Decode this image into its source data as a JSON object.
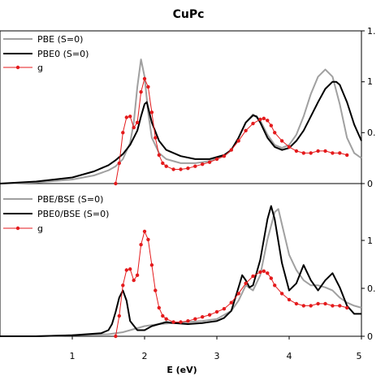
{
  "chart_data": {
    "type": "line",
    "title": "CuPc",
    "xlabel": "E (eV)",
    "xlim": [
      0,
      5
    ],
    "x_ticks": [
      "1",
      "2",
      "3",
      "4",
      "5"
    ],
    "y_ticks_right": [
      "0",
      "0.",
      "1",
      "1."
    ],
    "panels": [
      {
        "ylim": [
          0,
          1.5
        ],
        "legend": "top-left",
        "series": [
          {
            "name": "PBE (S=0)",
            "color": "#a0a0a0",
            "style": "line",
            "x": [
              0.0,
              0.5,
              1.0,
              1.3,
              1.5,
              1.6,
              1.7,
              1.8,
              1.85,
              1.9,
              1.95,
              2.0,
              2.05,
              2.1,
              2.2,
              2.3,
              2.5,
              2.7,
              2.9,
              3.1,
              3.2,
              3.3,
              3.4,
              3.5,
              3.6,
              3.7,
              3.8,
              3.9,
              4.0,
              4.1,
              4.2,
              4.3,
              4.4,
              4.5,
              4.6,
              4.7,
              4.8,
              4.9,
              5.0
            ],
            "y": [
              0.0,
              0.01,
              0.04,
              0.08,
              0.13,
              0.17,
              0.24,
              0.4,
              0.6,
              0.95,
              1.22,
              1.05,
              0.7,
              0.45,
              0.3,
              0.24,
              0.2,
              0.2,
              0.22,
              0.27,
              0.33,
              0.45,
              0.6,
              0.68,
              0.62,
              0.48,
              0.38,
              0.35,
              0.38,
              0.48,
              0.66,
              0.88,
              1.05,
              1.12,
              1.05,
              0.78,
              0.45,
              0.3,
              0.25
            ]
          },
          {
            "name": "PBE0 (S=0)",
            "color": "#000000",
            "style": "line",
            "x": [
              0.0,
              0.5,
              1.0,
              1.3,
              1.5,
              1.6,
              1.7,
              1.8,
              1.9,
              1.95,
              2.0,
              2.03,
              2.1,
              2.2,
              2.3,
              2.5,
              2.7,
              2.9,
              3.1,
              3.2,
              3.3,
              3.4,
              3.5,
              3.55,
              3.6,
              3.7,
              3.8,
              3.9,
              4.0,
              4.1,
              4.2,
              4.3,
              4.4,
              4.5,
              4.6,
              4.65,
              4.7,
              4.8,
              4.9,
              5.0
            ],
            "y": [
              0.0,
              0.02,
              0.06,
              0.12,
              0.18,
              0.23,
              0.29,
              0.38,
              0.52,
              0.66,
              0.78,
              0.8,
              0.6,
              0.42,
              0.33,
              0.27,
              0.24,
              0.24,
              0.28,
              0.33,
              0.45,
              0.6,
              0.67,
              0.66,
              0.6,
              0.45,
              0.36,
              0.33,
              0.35,
              0.42,
              0.52,
              0.66,
              0.8,
              0.93,
              1.0,
              1.0,
              0.97,
              0.8,
              0.58,
              0.42
            ]
          },
          {
            "name": "g",
            "color": "#e41a1c",
            "style": "line-marker",
            "x": [
              1.6,
              1.65,
              1.7,
              1.75,
              1.8,
              1.85,
              1.9,
              1.95,
              2.0,
              2.05,
              2.1,
              2.15,
              2.2,
              2.25,
              2.3,
              2.4,
              2.5,
              2.6,
              2.7,
              2.8,
              2.9,
              3.0,
              3.1,
              3.2,
              3.3,
              3.4,
              3.5,
              3.6,
              3.65,
              3.7,
              3.75,
              3.8,
              3.9,
              4.0,
              4.1,
              4.2,
              4.3,
              4.4,
              4.5,
              4.6,
              4.7,
              4.8
            ],
            "y": [
              0.0,
              0.2,
              0.5,
              0.65,
              0.66,
              0.55,
              0.6,
              0.9,
              1.03,
              0.95,
              0.7,
              0.45,
              0.28,
              0.2,
              0.17,
              0.14,
              0.14,
              0.15,
              0.17,
              0.19,
              0.21,
              0.24,
              0.27,
              0.33,
              0.42,
              0.52,
              0.59,
              0.63,
              0.64,
              0.62,
              0.57,
              0.5,
              0.42,
              0.36,
              0.32,
              0.3,
              0.3,
              0.32,
              0.32,
              0.3,
              0.3,
              0.28
            ]
          }
        ]
      },
      {
        "ylim": [
          0,
          1.5
        ],
        "legend": "top-left",
        "series": [
          {
            "name": "PBE/BSE (S=0)",
            "color": "#a0a0a0",
            "style": "line",
            "x": [
              0.0,
              0.5,
              1.0,
              1.5,
              1.6,
              1.7,
              1.8,
              1.9,
              2.0,
              2.2,
              2.4,
              2.6,
              2.8,
              3.0,
              3.2,
              3.3,
              3.4,
              3.5,
              3.6,
              3.7,
              3.8,
              3.85,
              3.9,
              4.0,
              4.1,
              4.2,
              4.3,
              4.4,
              4.5,
              4.6,
              4.7,
              4.8,
              4.9,
              5.0
            ],
            "y": [
              0.0,
              0.0,
              0.01,
              0.02,
              0.03,
              0.04,
              0.06,
              0.08,
              0.1,
              0.12,
              0.13,
              0.14,
              0.15,
              0.17,
              0.25,
              0.35,
              0.5,
              0.45,
              0.6,
              0.95,
              1.22,
              1.25,
              1.1,
              0.8,
              0.65,
              0.55,
              0.5,
              0.5,
              0.48,
              0.45,
              0.38,
              0.33,
              0.3,
              0.28
            ]
          },
          {
            "name": "PBE0/BSE (S=0)",
            "color": "#000000",
            "style": "line",
            "x": [
              0.0,
              0.5,
              1.0,
              1.4,
              1.5,
              1.55,
              1.6,
              1.65,
              1.7,
              1.75,
              1.8,
              1.9,
              2.0,
              2.1,
              2.2,
              2.3,
              2.4,
              2.6,
              2.8,
              3.0,
              3.1,
              3.2,
              3.3,
              3.35,
              3.4,
              3.45,
              3.5,
              3.6,
              3.7,
              3.75,
              3.8,
              3.9,
              4.0,
              4.1,
              4.2,
              4.3,
              4.4,
              4.5,
              4.6,
              4.7,
              4.8,
              4.9,
              5.0
            ],
            "y": [
              0.0,
              0.0,
              0.01,
              0.03,
              0.06,
              0.12,
              0.24,
              0.38,
              0.45,
              0.35,
              0.15,
              0.06,
              0.06,
              0.1,
              0.12,
              0.14,
              0.13,
              0.12,
              0.13,
              0.15,
              0.18,
              0.25,
              0.48,
              0.6,
              0.55,
              0.48,
              0.5,
              0.75,
              1.15,
              1.28,
              1.15,
              0.72,
              0.45,
              0.52,
              0.7,
              0.55,
              0.45,
              0.55,
              0.62,
              0.48,
              0.3,
              0.22,
              0.22
            ]
          },
          {
            "name": "g",
            "color": "#e41a1c",
            "style": "line-marker",
            "x": [
              1.6,
              1.65,
              1.7,
              1.75,
              1.8,
              1.85,
              1.9,
              1.95,
              2.0,
              2.05,
              2.1,
              2.15,
              2.2,
              2.25,
              2.3,
              2.4,
              2.5,
              2.6,
              2.7,
              2.8,
              2.9,
              3.0,
              3.1,
              3.2,
              3.3,
              3.4,
              3.5,
              3.6,
              3.65,
              3.7,
              3.75,
              3.8,
              3.9,
              4.0,
              4.1,
              4.2,
              4.3,
              4.4,
              4.5,
              4.6,
              4.7,
              4.8
            ],
            "y": [
              0.0,
              0.2,
              0.5,
              0.65,
              0.66,
              0.55,
              0.6,
              0.9,
              1.03,
              0.95,
              0.7,
              0.45,
              0.28,
              0.2,
              0.17,
              0.14,
              0.14,
              0.15,
              0.17,
              0.19,
              0.21,
              0.24,
              0.27,
              0.33,
              0.42,
              0.52,
              0.59,
              0.63,
              0.64,
              0.62,
              0.57,
              0.5,
              0.42,
              0.36,
              0.32,
              0.3,
              0.3,
              0.32,
              0.32,
              0.3,
              0.3,
              0.28
            ]
          }
        ]
      }
    ]
  }
}
